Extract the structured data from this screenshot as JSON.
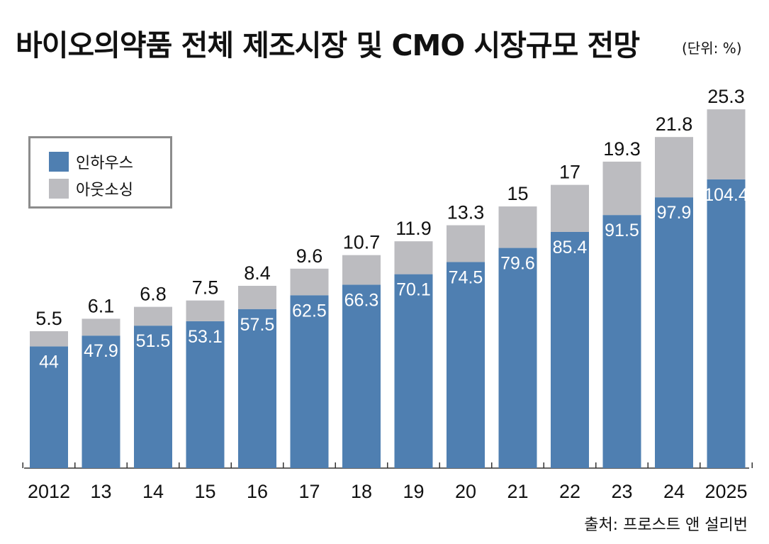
{
  "title": "바이오의약품 전체 제조시장 및 CMO 시장규모 전망",
  "unit": "(단위: %)",
  "source": "출처: 프로스트 앤 설리번",
  "colors": {
    "inhouse": "#4f7fb1",
    "outsourcing": "#bcbcc0",
    "axis": "#333333"
  },
  "legend": [
    {
      "label": "인하우스",
      "color": "#4f7fb1"
    },
    {
      "label": "아웃소싱",
      "color": "#bcbcc0"
    }
  ],
  "chart_data": {
    "type": "bar",
    "stacked": true,
    "categories": [
      "2012",
      "13",
      "14",
      "15",
      "16",
      "17",
      "18",
      "19",
      "20",
      "21",
      "22",
      "23",
      "24",
      "2025"
    ],
    "series": [
      {
        "name": "인하우스",
        "values": [
          44,
          47.9,
          51.5,
          53.1,
          57.5,
          62.5,
          66.3,
          70.1,
          74.5,
          79.6,
          85.4,
          91.5,
          97.9,
          104.4
        ]
      },
      {
        "name": "아웃소싱",
        "values": [
          5.5,
          6.1,
          6.8,
          7.5,
          8.4,
          9.6,
          10.7,
          11.9,
          13.3,
          15,
          17,
          19.3,
          21.8,
          25.3
        ]
      }
    ],
    "labels": {
      "inhouse": [
        "44",
        "47.9",
        "51.5",
        "53.1",
        "57.5",
        "62.5",
        "66.3",
        "70.1",
        "74.5",
        "79.6",
        "85.4",
        "91.5",
        "97.9",
        "104.4"
      ],
      "outsourcing": [
        "5.5",
        "6.1",
        "6.8",
        "7.5",
        "8.4",
        "9.6",
        "10.7",
        "11.9",
        "13.3",
        "15",
        "17",
        "19.3",
        "21.8",
        "25.3"
      ]
    },
    "legend_position": "top-left",
    "grid": false
  }
}
